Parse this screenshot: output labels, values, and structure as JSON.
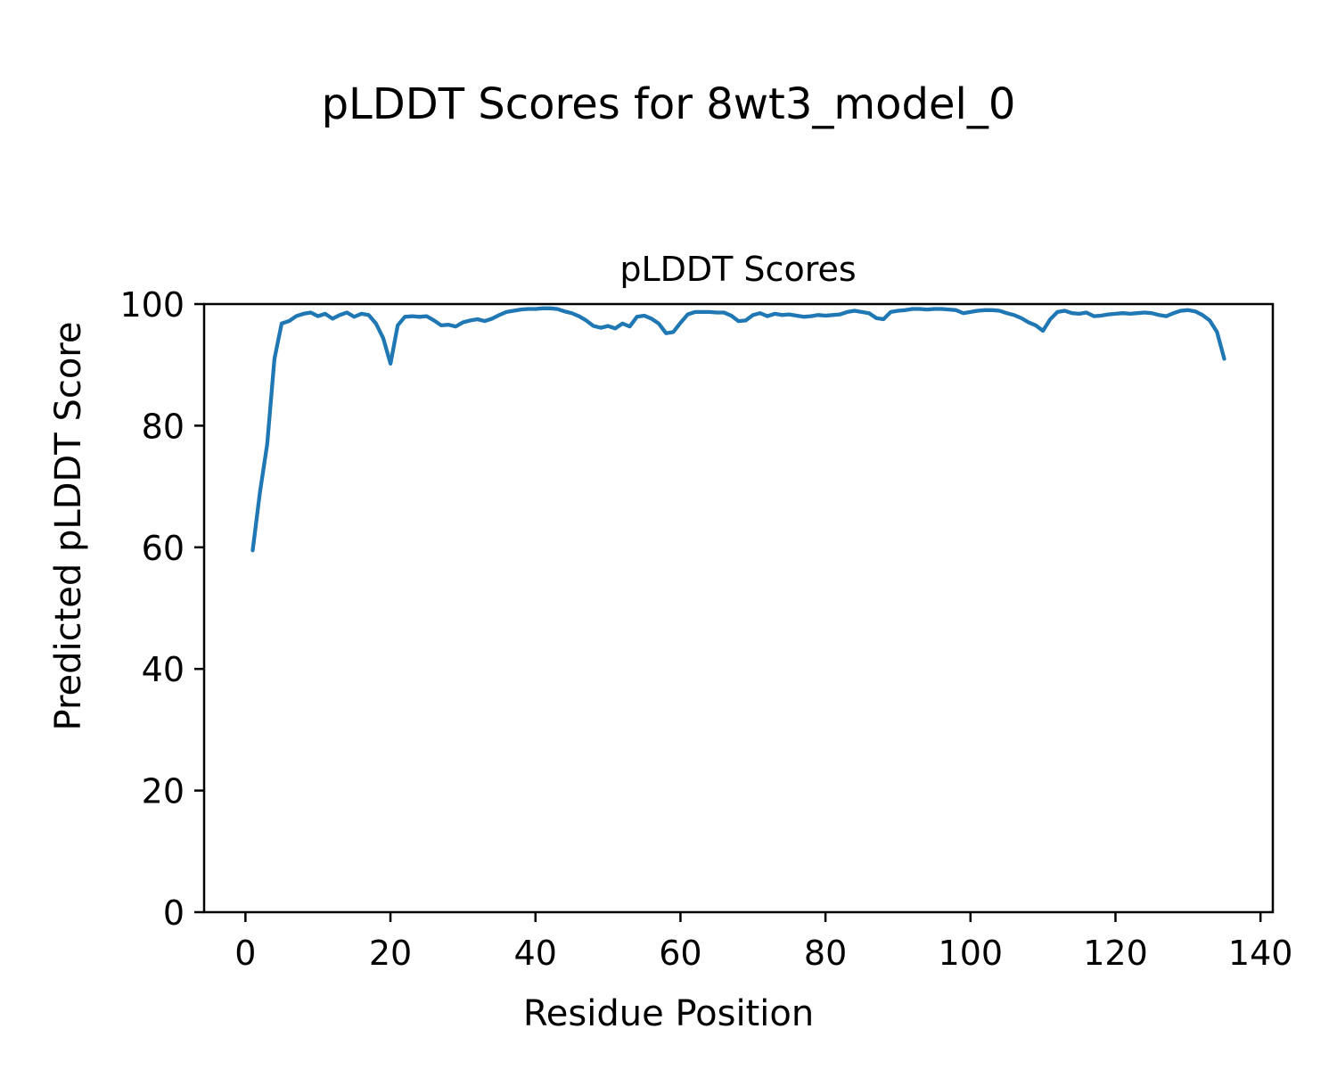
{
  "figure": {
    "suptitle": "pLDDT Scores for 8wt3_model_0"
  },
  "chart_data": {
    "type": "line",
    "title": "pLDDT Scores",
    "xlabel": "Residue Position",
    "ylabel": "Predicted pLDDT Score",
    "xlim": [
      -5.7,
      141.7
    ],
    "ylim": [
      0,
      100
    ],
    "xticks": [
      0,
      20,
      40,
      60,
      80,
      100,
      120,
      140
    ],
    "yticks": [
      0,
      20,
      40,
      60,
      80,
      100
    ],
    "grid": false,
    "legend": null,
    "line_color": "#1f77b4",
    "background_color": "#ffffff",
    "series": [
      {
        "name": "pLDDT",
        "x": [
          1,
          2,
          3,
          4,
          5,
          6,
          7,
          8,
          9,
          10,
          11,
          12,
          13,
          14,
          15,
          16,
          17,
          18,
          19,
          20,
          21,
          22,
          23,
          24,
          25,
          26,
          27,
          28,
          29,
          30,
          31,
          32,
          33,
          34,
          35,
          36,
          37,
          38,
          39,
          40,
          41,
          42,
          43,
          44,
          45,
          46,
          47,
          48,
          49,
          50,
          51,
          52,
          53,
          54,
          55,
          56,
          57,
          58,
          59,
          60,
          61,
          62,
          63,
          64,
          65,
          66,
          67,
          68,
          69,
          70,
          71,
          72,
          73,
          74,
          75,
          76,
          77,
          78,
          79,
          80,
          81,
          82,
          83,
          84,
          85,
          86,
          87,
          88,
          89,
          90,
          91,
          92,
          93,
          94,
          95,
          96,
          97,
          98,
          99,
          100,
          101,
          102,
          103,
          104,
          105,
          106,
          107,
          108,
          109,
          110,
          111,
          112,
          113,
          114,
          115,
          116,
          117,
          118,
          119,
          120,
          121,
          122,
          123,
          124,
          125,
          126,
          127,
          128,
          129,
          130,
          131,
          132,
          133,
          134,
          135
        ],
        "values": [
          59.5,
          69,
          77,
          91,
          96.8,
          97.2,
          98,
          98.4,
          98.6,
          98,
          98.4,
          97.6,
          98.2,
          98.6,
          97.9,
          98.4,
          98.2,
          96.8,
          94.4,
          90.2,
          96.5,
          97.9,
          98,
          97.9,
          98,
          97.3,
          96.5,
          96.6,
          96.3,
          97,
          97.3,
          97.5,
          97.2,
          97.6,
          98.2,
          98.7,
          98.9,
          99.1,
          99.2,
          99.2,
          99.3,
          99.3,
          99.2,
          98.8,
          98.5,
          98,
          97.3,
          96.4,
          96.1,
          96.4,
          96,
          96.8,
          96.3,
          97.9,
          98.1,
          97.6,
          96.8,
          95.2,
          95.4,
          96.9,
          98.3,
          98.7,
          98.7,
          98.7,
          98.6,
          98.6,
          98.1,
          97.2,
          97.3,
          98.2,
          98.5,
          98,
          98.4,
          98.2,
          98.3,
          98.1,
          97.9,
          98,
          98.2,
          98.1,
          98.2,
          98.3,
          98.7,
          98.9,
          98.7,
          98.5,
          97.7,
          97.5,
          98.7,
          98.9,
          99,
          99.2,
          99.2,
          99.1,
          99.2,
          99.2,
          99.1,
          99,
          98.5,
          98.7,
          98.9,
          99,
          99,
          98.9,
          98.5,
          98.2,
          97.7,
          97,
          96.5,
          95.6,
          97.5,
          98.7,
          98.9,
          98.5,
          98.4,
          98.6,
          98,
          98.1,
          98.3,
          98.4,
          98.5,
          98.4,
          98.5,
          98.6,
          98.5,
          98.2,
          98,
          98.5,
          98.9,
          99,
          98.8,
          98.2,
          97.3,
          95.4,
          91
        ]
      }
    ]
  }
}
